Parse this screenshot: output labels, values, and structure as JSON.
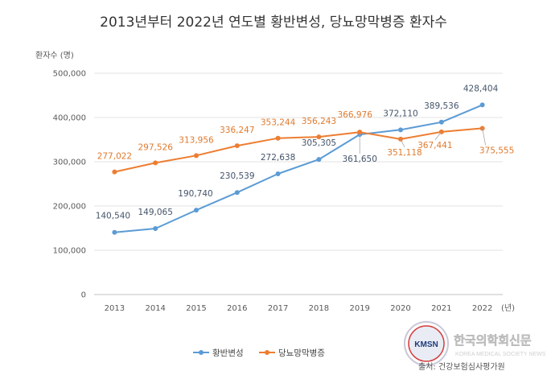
{
  "chart_data": {
    "type": "line",
    "title": "2013년부터 2022년 연도별 황반변성, 당뇨망막병증 환자수",
    "ylabel": "환자수 (명)",
    "x_unit": "(년)",
    "categories": [
      "2013",
      "2014",
      "2015",
      "2016",
      "2017",
      "2018",
      "2019",
      "2020",
      "2021",
      "2022"
    ],
    "ylim": [
      0,
      500000
    ],
    "yticks": [
      0,
      100000,
      200000,
      300000,
      400000,
      500000
    ],
    "ytick_labels": [
      "0",
      "100,000",
      "200,000",
      "300,000",
      "400,000",
      "500,000"
    ],
    "grid": true,
    "legend_position": "bottom",
    "series": [
      {
        "name": "황반변성",
        "color": "#5B9BD5",
        "values": [
          140540,
          149065,
          190740,
          230539,
          272638,
          305305,
          361650,
          372110,
          389536,
          428404
        ],
        "labels": [
          "140,540",
          "149,065",
          "190,740",
          "230,539",
          "272,638",
          "305,305",
          "361,650",
          "372,110",
          "389,536",
          "428,404"
        ]
      },
      {
        "name": "당뇨망막병증",
        "color": "#ED7D31",
        "values": [
          277022,
          297526,
          313956,
          336247,
          353244,
          356243,
          366976,
          351118,
          367441,
          375555
        ],
        "labels": [
          "277,022",
          "297,526",
          "313,956",
          "336,247",
          "353,244",
          "356,243",
          "366,976",
          "351,118",
          "367,441",
          "375,555"
        ]
      }
    ],
    "source": "출처: 건강보험심사평가원"
  },
  "watermark": {
    "text": "한국의학회신문",
    "subtext": "KOREA MEDICAL SOCIETY NEWS",
    "badge": "KMSN"
  }
}
